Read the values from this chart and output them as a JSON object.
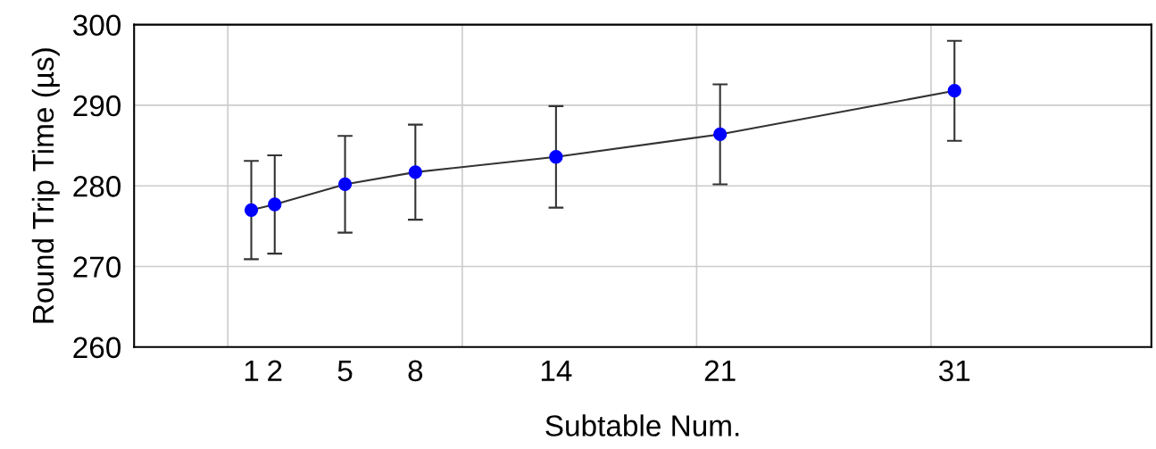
{
  "chart_data": {
    "type": "line",
    "xlabel": "Subtable Num.",
    "ylabel": "Round Trip Time (µs)",
    "x": [
      1,
      2,
      5,
      8,
      14,
      21,
      31
    ],
    "series": [
      {
        "color": "#0000ff",
        "values": [
          277.0,
          277.7,
          280.2,
          281.7,
          283.6,
          286.4,
          291.8
        ],
        "errors": [
          6.1,
          6.1,
          6.0,
          5.9,
          6.3,
          6.2,
          6.2
        ]
      }
    ],
    "xlim": [
      -4,
      39.4
    ],
    "xticks": [
      {
        "value": 0,
        "label": null
      },
      1,
      2,
      5,
      8,
      {
        "value": 10,
        "label": null
      },
      14,
      {
        "value": 20,
        "label": null
      },
      21,
      {
        "value": 30,
        "label": null
      },
      31
    ],
    "ylim": [
      260,
      300
    ],
    "yticks": [
      260,
      270,
      280,
      290,
      300
    ],
    "grid": true,
    "marker": "circle",
    "line_style": "solid"
  }
}
